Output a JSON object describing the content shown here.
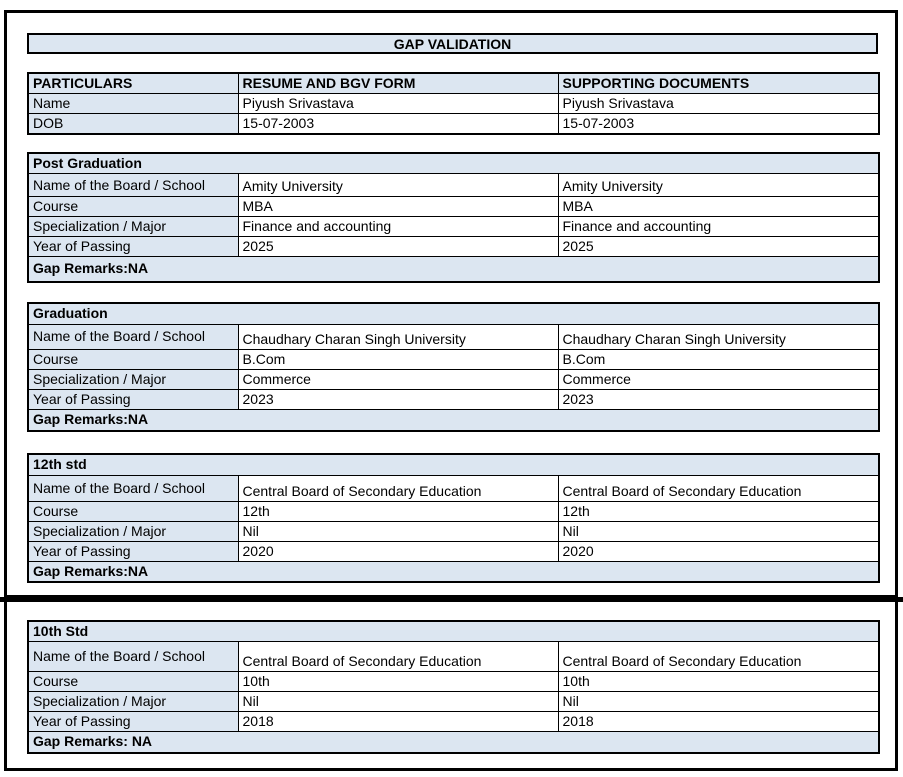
{
  "title": "GAP VALIDATION",
  "columns": [
    "PARTICULARS",
    "RESUME AND BGV FORM",
    "SUPPORTING DOCUMENTS"
  ],
  "personal": [
    {
      "label": "Name",
      "resume": "Piyush Srivastava",
      "supporting": "Piyush Srivastava"
    },
    {
      "label": "DOB",
      "resume": "15-07-2003",
      "supporting": "15-07-2003"
    }
  ],
  "sections": [
    {
      "heading": "Post Graduation",
      "rows": [
        {
          "label": "Name of the Board / School",
          "resume": "Amity University",
          "supporting": "Amity University"
        },
        {
          "label": "Course",
          "resume": "MBA",
          "supporting": "MBA"
        },
        {
          "label": "Specialization / Major",
          "resume": "Finance and accounting",
          "supporting": "Finance and accounting"
        },
        {
          "label": "Year of Passing",
          "resume": "2025",
          "supporting": "2025"
        }
      ],
      "gap_remarks": "Gap Remarks:NA"
    },
    {
      "heading": "Graduation",
      "rows": [
        {
          "label": "Name of the Board / School",
          "resume": "Chaudhary Charan Singh University",
          "supporting": "Chaudhary Charan Singh University"
        },
        {
          "label": "Course",
          "resume": "B.Com",
          "supporting": "B.Com"
        },
        {
          "label": "Specialization / Major",
          "resume": "Commerce",
          "supporting": "Commerce"
        },
        {
          "label": "Year of Passing",
          "resume": "2023",
          "supporting": "2023"
        }
      ],
      "gap_remarks": "Gap Remarks:NA"
    },
    {
      "heading": "12th std",
      "rows": [
        {
          "label": "Name of the Board / School",
          "resume": "Central Board of Secondary Education",
          "supporting": "Central Board of Secondary Education"
        },
        {
          "label": "Course",
          "resume": "12th",
          "supporting": "12th"
        },
        {
          "label": "Specialization / Major",
          "resume": "Nil",
          "supporting": "Nil"
        },
        {
          "label": "Year of Passing",
          "resume": "2020",
          "supporting": "2020"
        }
      ],
      "gap_remarks": "Gap Remarks:NA"
    },
    {
      "heading": "10th Std",
      "rows": [
        {
          "label": "Name of the Board / School",
          "resume": "Central Board of Secondary Education",
          "supporting": "Central Board of Secondary Education"
        },
        {
          "label": "Course",
          "resume": "10th",
          "supporting": "10th"
        },
        {
          "label": "Specialization / Major",
          "resume": "Nil",
          "supporting": "Nil"
        },
        {
          "label": "Year of Passing",
          "resume": "2018",
          "supporting": "2018"
        }
      ],
      "gap_remarks": "Gap Remarks: NA"
    }
  ],
  "colors": {
    "header_fill": "#dce6f1",
    "border": "#000000",
    "background": "#ffffff"
  }
}
